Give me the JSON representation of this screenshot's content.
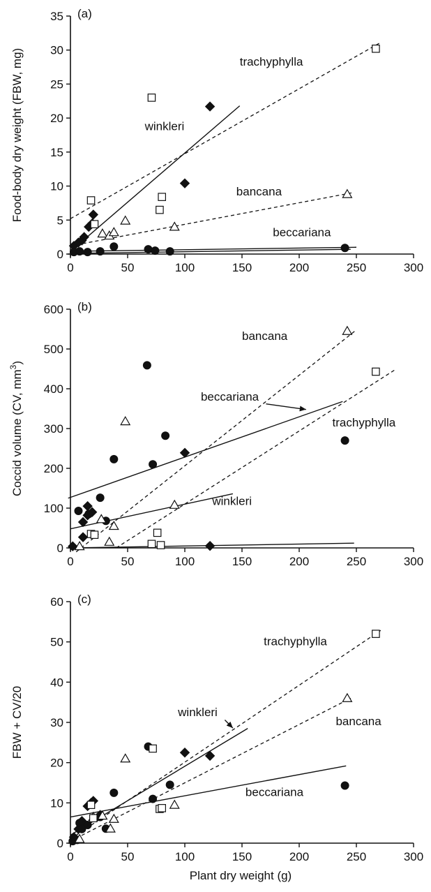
{
  "chart_data": [
    {
      "panel": "(a)",
      "type": "scatter",
      "ylabel": "Food-body dry weight (FBW, mg)",
      "xlabel": "",
      "xlim": [
        0,
        300
      ],
      "ylim": [
        0,
        35
      ],
      "xticks": [
        0,
        50,
        100,
        150,
        200,
        250,
        300
      ],
      "yticks": [
        0,
        5,
        10,
        15,
        20,
        25,
        30,
        35
      ],
      "grid": false,
      "series": [
        {
          "name": "winkleri",
          "marker": "diamond-filled",
          "points": [
            [
              3,
              1.2
            ],
            [
              7,
              1.7
            ],
            [
              10,
              2.0
            ],
            [
              12,
              2.5
            ],
            [
              16,
              4.0
            ],
            [
              19,
              4.5
            ],
            [
              20,
              5.8
            ],
            [
              100,
              10.4
            ],
            [
              122,
              21.7
            ]
          ]
        },
        {
          "name": "beccariana",
          "marker": "circle-filled",
          "points": [
            [
              3,
              0.3
            ],
            [
              8,
              0.4
            ],
            [
              15,
              0.3
            ],
            [
              26,
              0.4
            ],
            [
              38,
              1.1
            ],
            [
              68,
              0.7
            ],
            [
              74,
              0.5
            ],
            [
              87,
              0.4
            ],
            [
              240,
              0.9
            ]
          ]
        },
        {
          "name": "bancana",
          "marker": "triangle-open",
          "points": [
            [
              28,
              3.0
            ],
            [
              34,
              2.7
            ],
            [
              38,
              3.2
            ],
            [
              48,
              4.9
            ],
            [
              91,
              4.0
            ],
            [
              242,
              8.8
            ]
          ]
        },
        {
          "name": "trachyphylla",
          "marker": "square-open",
          "points": [
            [
              18,
              7.9
            ],
            [
              21,
              4.4
            ],
            [
              71,
              23.0
            ],
            [
              78,
              6.5
            ],
            [
              80,
              8.4
            ],
            [
              267,
              30.2
            ]
          ]
        }
      ],
      "fits": [
        {
          "name": "trachyphylla",
          "style": "dashed",
          "from": [
            0,
            5.2
          ],
          "to": [
            270,
            31
          ]
        },
        {
          "name": "winkleri",
          "style": "solid",
          "from": [
            0,
            0.4
          ],
          "to": [
            148,
            21.8
          ]
        },
        {
          "name": "bancana",
          "style": "dashed",
          "from": [
            0,
            1.2
          ],
          "to": [
            246,
            9.0
          ]
        },
        {
          "name": "beccariana",
          "style": "solid",
          "from": [
            0,
            0.4
          ],
          "to": [
            250,
            1.0
          ]
        },
        {
          "name": "",
          "style": "solid",
          "from": [
            0,
            0.1
          ],
          "to": [
            245,
            0.7
          ]
        }
      ],
      "annotations": [
        {
          "text": "trachyphylla",
          "at": [
            148,
            27.7
          ]
        },
        {
          "text": "winkleri",
          "at": [
            65,
            18.2
          ]
        },
        {
          "text": "bancana",
          "at": [
            145,
            8.6
          ]
        },
        {
          "text": "beccariana",
          "at": [
            177,
            2.6
          ]
        }
      ]
    },
    {
      "panel": "(b)",
      "type": "scatter",
      "ylabel": "Coccid volume (CV, mm³)",
      "xlabel": "",
      "xlim": [
        0,
        300
      ],
      "ylim": [
        0,
        600
      ],
      "xticks": [
        0,
        50,
        100,
        150,
        200,
        250,
        300
      ],
      "yticks": [
        0,
        100,
        200,
        300,
        400,
        500,
        600
      ],
      "grid": false,
      "series": [
        {
          "name": "winkleri",
          "marker": "diamond-filled",
          "points": [
            [
              2,
              4
            ],
            [
              11,
              27
            ],
            [
              11,
              65
            ],
            [
              15,
              82
            ],
            [
              15,
              105
            ],
            [
              19,
              90
            ],
            [
              100,
              239
            ],
            [
              122,
              5
            ]
          ]
        },
        {
          "name": "beccariana",
          "marker": "circle-filled",
          "points": [
            [
              7,
              93
            ],
            [
              16,
              85
            ],
            [
              26,
              126
            ],
            [
              31,
              68
            ],
            [
              38,
              223
            ],
            [
              67,
              459
            ],
            [
              72,
              210
            ],
            [
              83,
              282
            ],
            [
              240,
              270
            ]
          ]
        },
        {
          "name": "bancana",
          "marker": "triangle-open",
          "points": [
            [
              8,
              4
            ],
            [
              27,
              72
            ],
            [
              34,
              15
            ],
            [
              38,
              55
            ],
            [
              48,
              318
            ],
            [
              91,
              108
            ],
            [
              242,
              545
            ]
          ]
        },
        {
          "name": "trachyphylla",
          "marker": "square-open",
          "points": [
            [
              18,
              35
            ],
            [
              21,
              33
            ],
            [
              71,
              10
            ],
            [
              76,
              38
            ],
            [
              79,
              7
            ],
            [
              267,
              443
            ]
          ]
        }
      ],
      "fits": [
        {
          "name": "bancana",
          "style": "dashed",
          "from": [
            5,
            -10
          ],
          "to": [
            250,
            548
          ]
        },
        {
          "name": "trachyphylla",
          "style": "dashed",
          "from": [
            40,
            0
          ],
          "to": [
            285,
            450
          ]
        },
        {
          "name": "beccariana",
          "style": "solid",
          "from": [
            -2,
            125
          ],
          "to": [
            238,
            368
          ]
        },
        {
          "name": "winkleri",
          "style": "solid",
          "from": [
            0,
            48
          ],
          "to": [
            142,
            136
          ]
        },
        {
          "name": "",
          "style": "solid",
          "from": [
            0,
            0
          ],
          "to": [
            248,
            12
          ]
        }
      ],
      "annotations": [
        {
          "text": "bancana",
          "at": [
            150,
            523
          ]
        },
        {
          "text": "beccariana",
          "at": [
            114,
            370
          ]
        },
        {
          "text": "trachyphylla",
          "at": [
            229,
            305
          ]
        },
        {
          "text": "winkleri",
          "at": [
            124,
            108
          ]
        }
      ],
      "arrows": [
        {
          "from": [
            171,
            362
          ],
          "to": [
            206,
            348
          ]
        }
      ]
    },
    {
      "panel": "(c)",
      "type": "scatter",
      "ylabel": "FBW + CV/20",
      "xlabel": "Plant dry weight (g)",
      "xlim": [
        0,
        300
      ],
      "ylim": [
        0,
        60
      ],
      "xticks": [
        0,
        50,
        100,
        150,
        200,
        250,
        300
      ],
      "yticks": [
        0,
        10,
        20,
        30,
        40,
        50,
        60
      ],
      "grid": false,
      "series": [
        {
          "name": "winkleri",
          "marker": "diamond-filled",
          "points": [
            [
              3,
              1.5
            ],
            [
              7,
              3.5
            ],
            [
              10,
              5.5
            ],
            [
              12,
              4.5
            ],
            [
              15,
              9.2
            ],
            [
              18,
              10
            ],
            [
              20,
              10.5
            ],
            [
              26,
              7
            ],
            [
              100,
              22.5
            ],
            [
              122,
              21.7
            ]
          ]
        },
        {
          "name": "beccariana",
          "marker": "circle-filled",
          "points": [
            [
              2,
              0.5
            ],
            [
              4,
              1.0
            ],
            [
              6,
              0.8
            ],
            [
              8,
              5.0
            ],
            [
              10,
              3.5
            ],
            [
              15,
              4.5
            ],
            [
              26,
              6.5
            ],
            [
              31,
              3.6
            ],
            [
              38,
              12.5
            ],
            [
              68,
              24
            ],
            [
              72,
              11
            ],
            [
              87,
              14.5
            ],
            [
              240,
              14.3
            ]
          ]
        },
        {
          "name": "bancana",
          "marker": "triangle-open",
          "points": [
            [
              8,
              1.0
            ],
            [
              20,
              6.5
            ],
            [
              28,
              6.8
            ],
            [
              35,
              3.6
            ],
            [
              38,
              6.0
            ],
            [
              48,
              21
            ],
            [
              91,
              9.5
            ],
            [
              242,
              36
            ]
          ]
        },
        {
          "name": "trachyphylla",
          "marker": "square-open",
          "points": [
            [
              18,
              9.5
            ],
            [
              20,
              6.2
            ],
            [
              72,
              23.5
            ],
            [
              78,
              8.5
            ],
            [
              80,
              8.7
            ],
            [
              267,
              52
            ]
          ]
        }
      ],
      "fits": [
        {
          "name": "trachyphylla",
          "style": "dashed",
          "from": [
            0,
            1.0
          ],
          "to": [
            272,
            53
          ]
        },
        {
          "name": "bancana",
          "style": "dashed",
          "from": [
            0,
            0.5
          ],
          "to": [
            245,
            36
          ]
        },
        {
          "name": "winkleri",
          "style": "solid",
          "from": [
            0,
            2.0
          ],
          "to": [
            155,
            28.5
          ]
        },
        {
          "name": "beccariana",
          "style": "solid",
          "from": [
            0,
            6.5
          ],
          "to": [
            241,
            19.2
          ]
        }
      ],
      "annotations": [
        {
          "text": "trachyphylla",
          "at": [
            169,
            49.2
          ]
        },
        {
          "text": "winkleri",
          "at": [
            94,
            31.6
          ]
        },
        {
          "text": "bancana",
          "at": [
            232,
            29.3
          ]
        },
        {
          "text": "beccariana",
          "at": [
            153,
            11.7
          ]
        }
      ],
      "arrows": [
        {
          "from": [
            135,
            30.6
          ],
          "to": [
            142,
            28.6
          ]
        }
      ]
    }
  ]
}
